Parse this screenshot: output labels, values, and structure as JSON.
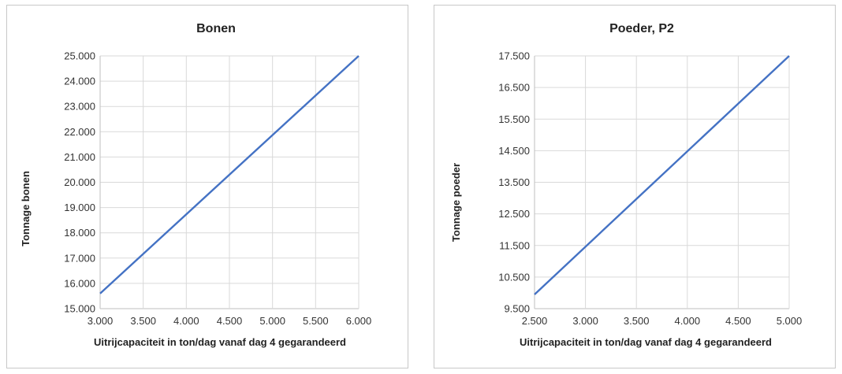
{
  "chart_data": [
    {
      "type": "line",
      "title": "Bonen",
      "xlabel": "Uitrijcapaciteit in ton/dag vanaf dag 4 gegarandeerd",
      "ylabel": "Tonnage bonen",
      "xlim": [
        3000,
        6000
      ],
      "ylim": [
        15000,
        25000
      ],
      "x_ticks": [
        "3.000",
        "3.500",
        "4.000",
        "4.500",
        "5.000",
        "5.500",
        "6.000"
      ],
      "y_ticks": [
        "15.000",
        "16.000",
        "17.000",
        "18.000",
        "19.000",
        "20.000",
        "21.000",
        "22.000",
        "23.000",
        "24.000",
        "25.000"
      ],
      "grid": true,
      "legend": "none",
      "color": "#4472c4",
      "series": [
        {
          "x": [
            3000,
            6000
          ],
          "y": [
            15600,
            25000
          ]
        }
      ]
    },
    {
      "type": "line",
      "title": "Poeder, P2",
      "xlabel": "Uitrijcapaciteit in ton/dag vanaf dag 4 gegarandeerd",
      "ylabel": "Tonnage poeder",
      "xlim": [
        2500,
        5000
      ],
      "ylim": [
        9500,
        17500
      ],
      "x_ticks": [
        "2.500",
        "3.000",
        "3.500",
        "4.000",
        "4.500",
        "5.000"
      ],
      "y_ticks": [
        "9.500",
        "10.500",
        "11.500",
        "12.500",
        "13.500",
        "14.500",
        "15.500",
        "16.500",
        "17.500"
      ],
      "grid": true,
      "legend": "none",
      "color": "#4472c4",
      "series": [
        {
          "x": [
            2500,
            5000
          ],
          "y": [
            9950,
            17500
          ]
        }
      ]
    }
  ]
}
